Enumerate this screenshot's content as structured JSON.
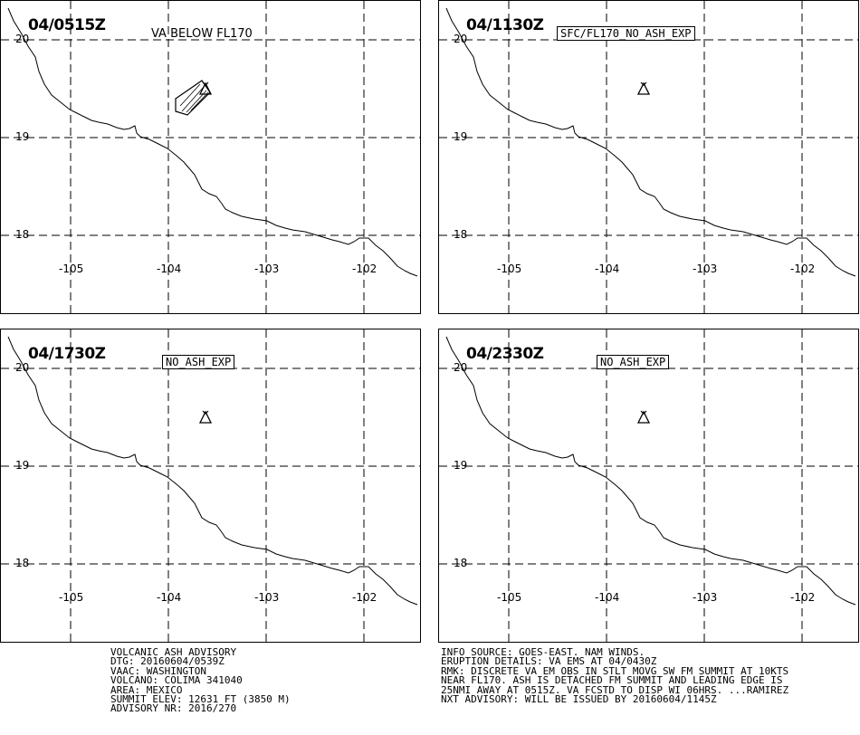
{
  "panels": [
    {
      "time": "04/0515Z",
      "status": "VA BELOW FL170",
      "status_boxed": false,
      "has_ash": true
    },
    {
      "time": "04/1130Z",
      "status": "SFC/FL170 NO ASH EXP",
      "status_boxed": true,
      "has_ash": false
    },
    {
      "time": "04/1730Z",
      "status": "NO ASH EXP",
      "status_boxed": true,
      "has_ash": false
    },
    {
      "time": "04/2330Z",
      "status": "NO ASH EXP",
      "status_boxed": true,
      "has_ash": false
    }
  ],
  "map": {
    "lat_labels": [
      "20",
      "19",
      "18"
    ],
    "lon_labels": [
      "-105",
      "-104",
      "-103",
      "-102"
    ],
    "gridlines": true,
    "volcano_icon": "volcano-triangle-icon"
  },
  "advisory_left": [
    "VOLCANIC ASH ADVISORY",
    "DTG: 20160604/0539Z",
    "VAAC: WASHINGTON",
    "VOLCANO: COLIMA 341040",
    "AREA: MEXICO",
    "SUMMIT ELEV: 12631 FT (3850 M)",
    "ADVISORY NR: 2016/270"
  ],
  "advisory_right": [
    "INFO SOURCE: GOES-EAST. NAM WINDS.",
    "ERUPTION DETAILS: VA EMS AT 04/0430Z",
    "RMK: DISCRETE VA EM OBS IN STLT MOVG SW FM SUMMIT AT 10KTS",
    "NEAR FL170. ASH IS DETACHED FM SUMMIT AND LEADING EDGE IS",
    "25NMI AWAY AT 0515Z. VA FCSTD TO DISP WI 06HRS. ...RAMIREZ",
    "NXT ADVISORY: WILL BE ISSUED BY 20160604/1145Z"
  ]
}
